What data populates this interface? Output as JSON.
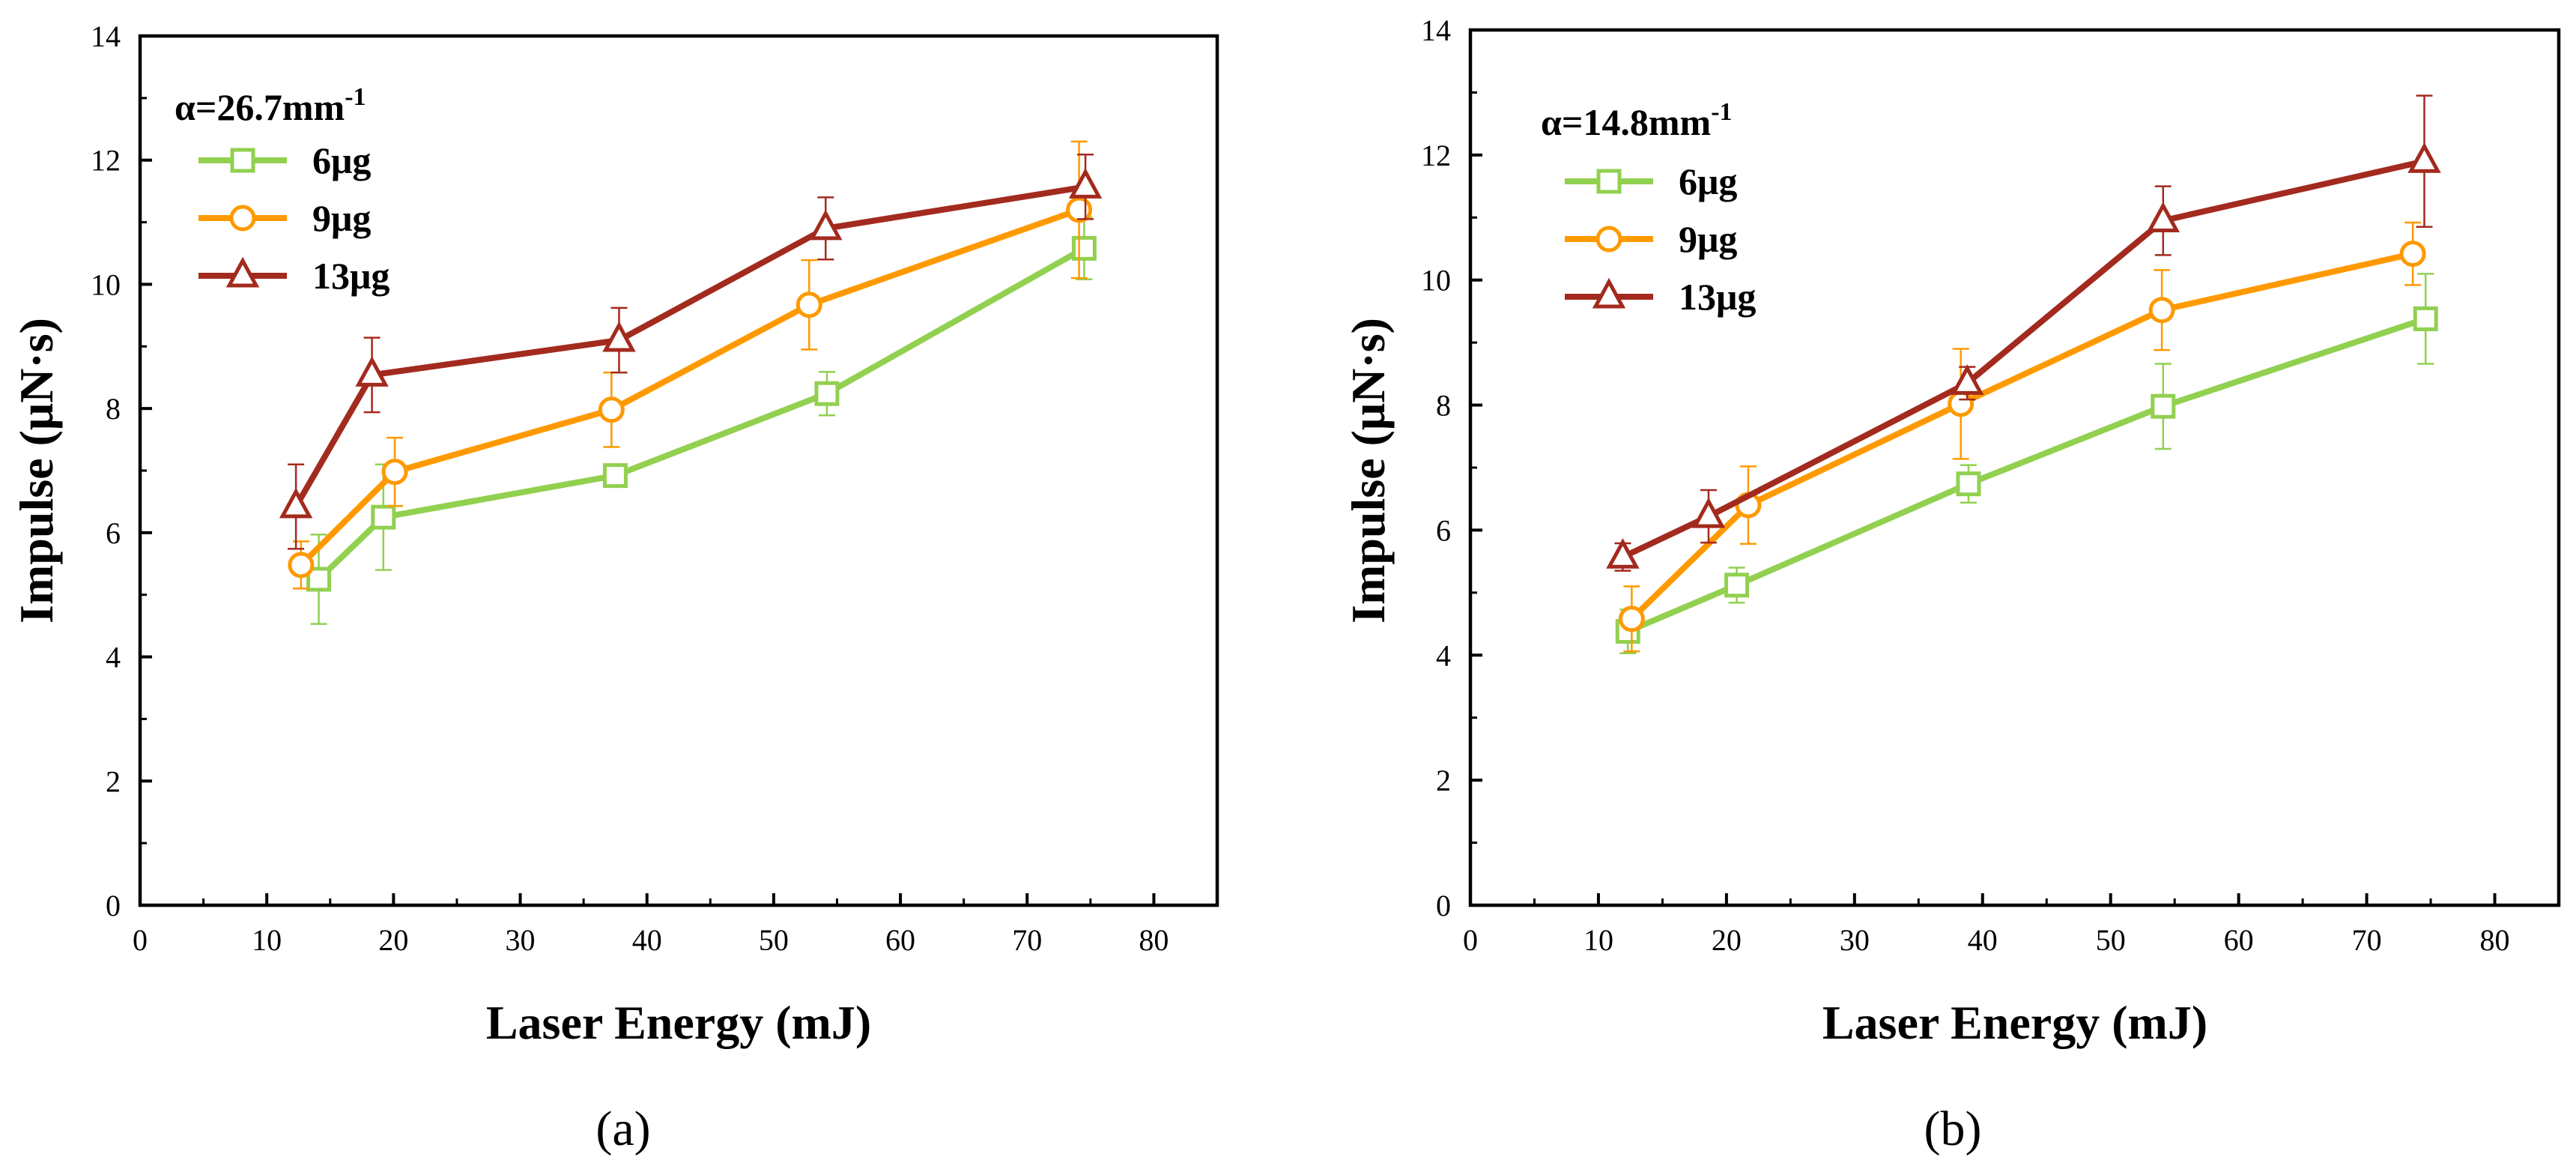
{
  "chart_data": [
    {
      "type": "line",
      "xlabel": "Laser Energy (mJ)",
      "ylabel": "Impulse (μN·s)",
      "xlim": [
        0,
        85
      ],
      "ylim": [
        0,
        14
      ],
      "xticks": [
        0,
        10,
        20,
        30,
        40,
        50,
        60,
        70,
        80
      ],
      "yticks": [
        0,
        2,
        4,
        6,
        8,
        10,
        12,
        14
      ],
      "grid": false,
      "legend_position": "top-left",
      "legend_title": {
        "base": "α=26.7mm",
        "sup": "-1"
      },
      "caption": "(a)",
      "series": [
        {
          "name": "6μg",
          "color": "#92d050",
          "marker": "square",
          "x": [
            14.1,
            19.2,
            37.5,
            54.2,
            74.5
          ],
          "y": [
            5.25,
            6.25,
            6.92,
            8.24,
            10.58
          ],
          "err": [
            0.72,
            0.85,
            0.1,
            0.35,
            0.5
          ]
        },
        {
          "name": "9μg",
          "color": "#ff9900",
          "marker": "circle",
          "x": [
            12.7,
            20.1,
            37.2,
            52.8,
            74.1
          ],
          "y": [
            5.48,
            6.98,
            7.98,
            9.67,
            11.2
          ],
          "err": [
            0.38,
            0.55,
            0.6,
            0.72,
            1.1
          ]
        },
        {
          "name": "13μg",
          "color": "#a32a1e",
          "marker": "triangle",
          "x": [
            12.3,
            18.3,
            37.8,
            54.1,
            74.6
          ],
          "y": [
            6.42,
            8.54,
            9.1,
            10.9,
            11.57
          ],
          "err": [
            0.68,
            0.6,
            0.52,
            0.5,
            0.52
          ]
        }
      ]
    },
    {
      "type": "line",
      "xlabel": "Laser Energy (mJ)",
      "ylabel": "Impulse (μN·s)",
      "xlim": [
        0,
        85
      ],
      "ylim": [
        0,
        14
      ],
      "xticks": [
        0,
        10,
        20,
        30,
        40,
        50,
        60,
        70,
        80
      ],
      "yticks": [
        0,
        2,
        4,
        6,
        8,
        10,
        12,
        14
      ],
      "grid": false,
      "legend_position": "top-left",
      "legend_title": {
        "base": "α=14.8mm",
        "sup": "-1"
      },
      "caption": "(b)",
      "series": [
        {
          "name": "6μg",
          "color": "#92d050",
          "marker": "square",
          "x": [
            12.3,
            20.8,
            38.9,
            54.1,
            74.6
          ],
          "y": [
            4.38,
            5.12,
            6.74,
            7.98,
            9.38
          ],
          "err": [
            0.35,
            0.28,
            0.3,
            0.68,
            0.72
          ]
        },
        {
          "name": "9μg",
          "color": "#ff9900",
          "marker": "circle",
          "x": [
            12.6,
            21.7,
            38.3,
            54.0,
            73.6
          ],
          "y": [
            4.58,
            6.4,
            8.02,
            9.52,
            10.42
          ],
          "err": [
            0.52,
            0.62,
            0.88,
            0.64,
            0.5
          ]
        },
        {
          "name": "13μg",
          "color": "#a32a1e",
          "marker": "triangle",
          "x": [
            11.9,
            18.6,
            38.8,
            54.1,
            74.5
          ],
          "y": [
            5.57,
            6.22,
            8.35,
            10.95,
            11.9
          ],
          "err": [
            0.22,
            0.42,
            0.26,
            0.55,
            1.05
          ]
        }
      ]
    }
  ]
}
